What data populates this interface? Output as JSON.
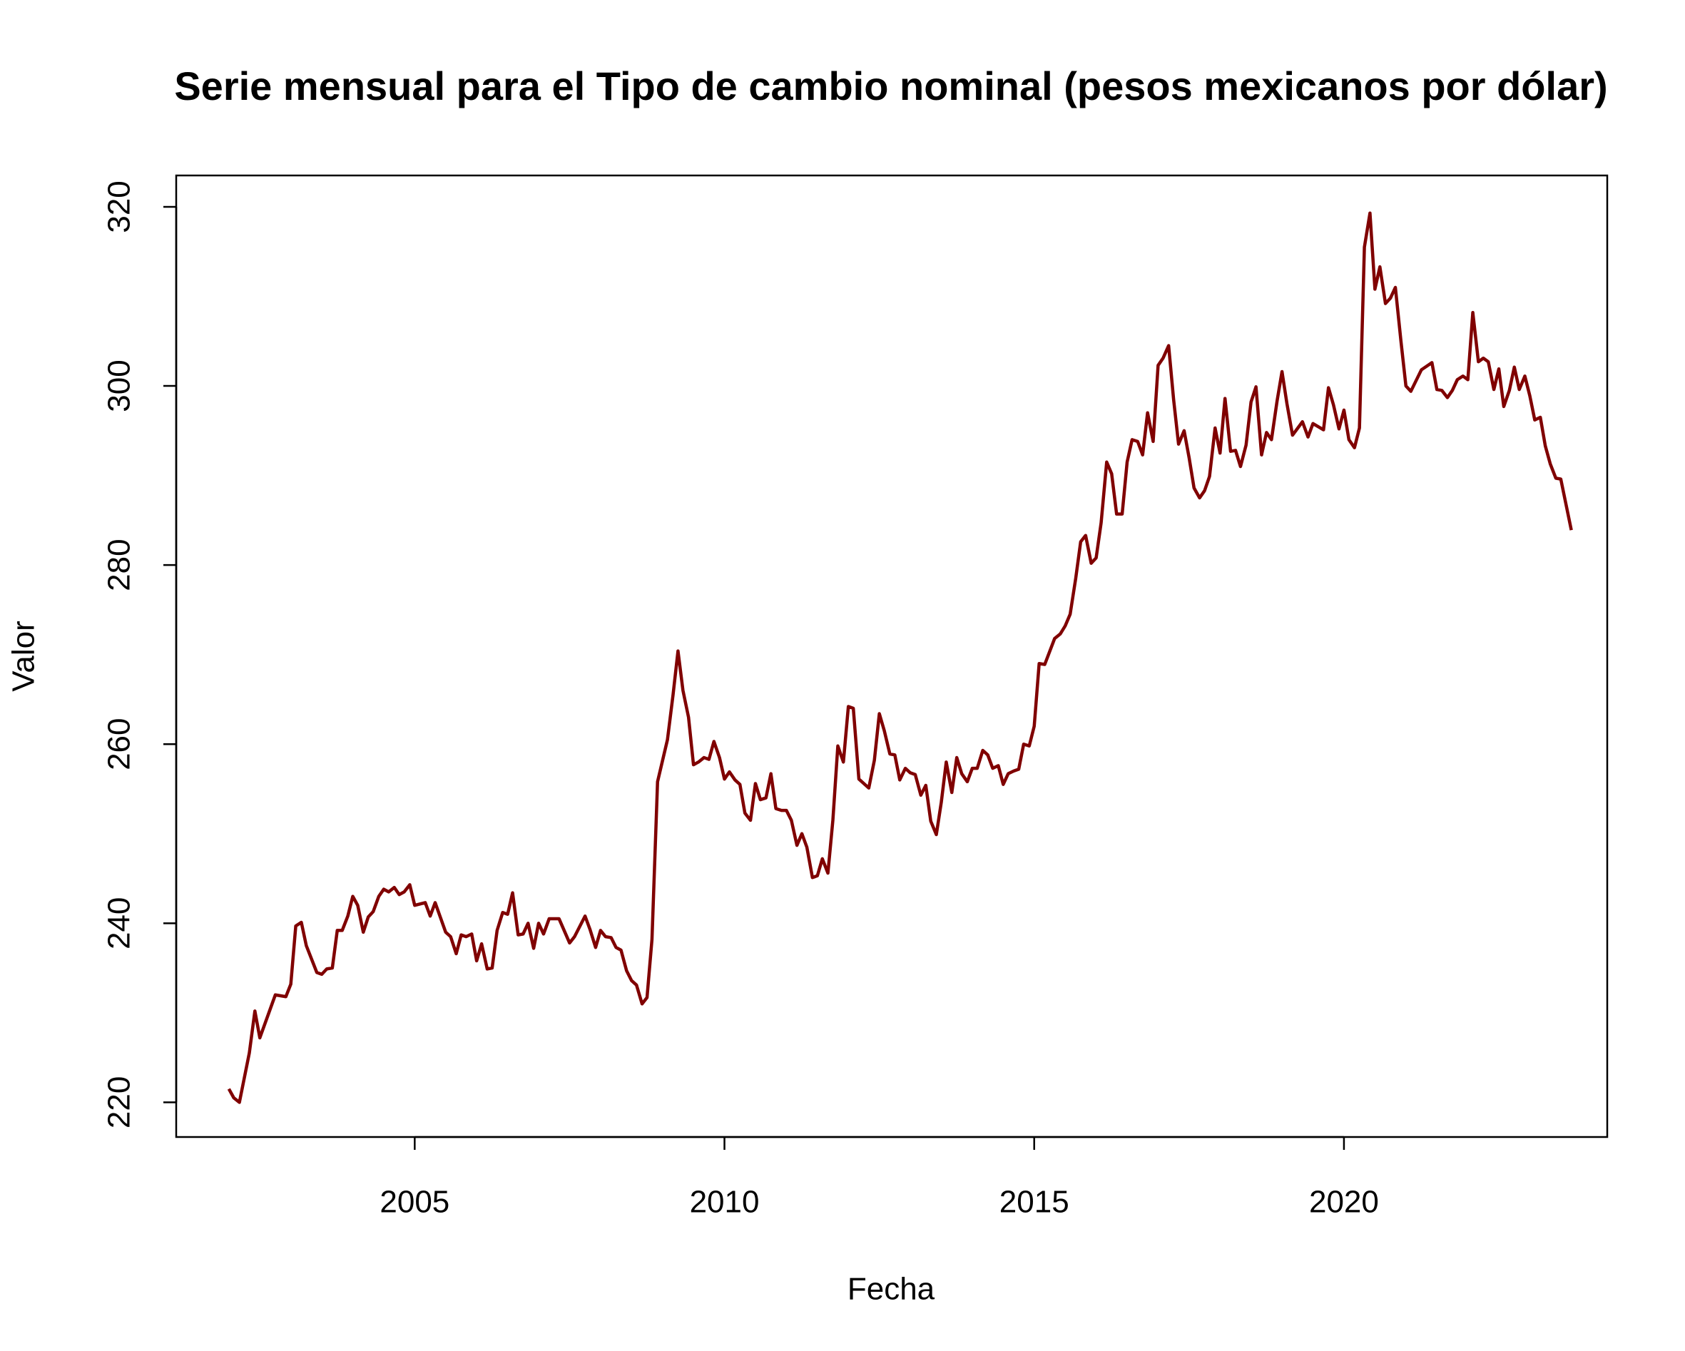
{
  "chart_data": {
    "type": "line",
    "title": "Serie mensual para el Tipo de cambio nominal (pesos mexicanos por dólar)",
    "x_label": "Fecha",
    "y_label": "Valor",
    "color": "#800000",
    "xlim": [
      2001.15,
      2024.25
    ],
    "ylim": [
      216.13,
      323.5
    ],
    "xticks": [
      2005,
      2010,
      2015,
      2020
    ],
    "yticks": [
      220,
      240,
      260,
      280,
      300,
      320
    ],
    "grid": false,
    "x": [
      2002.0,
      2002.08,
      2002.17,
      2002.33,
      2002.42,
      2002.5,
      2002.75,
      2002.92,
      2003.0,
      2003.08,
      2003.17,
      2003.25,
      2003.42,
      2003.5,
      2003.58,
      2003.67,
      2003.75,
      2003.83,
      2003.92,
      2004.0,
      2004.08,
      2004.17,
      2004.25,
      2004.33,
      2004.42,
      2004.5,
      2004.58,
      2004.67,
      2004.75,
      2004.83,
      2004.92,
      2005.0,
      2005.17,
      2005.25,
      2005.33,
      2005.5,
      2005.58,
      2005.67,
      2005.75,
      2005.83,
      2005.92,
      2006.0,
      2006.08,
      2006.17,
      2006.25,
      2006.33,
      2006.42,
      2006.5,
      2006.58,
      2006.67,
      2006.75,
      2006.83,
      2006.92,
      2007.0,
      2007.08,
      2007.17,
      2007.33,
      2007.5,
      2007.58,
      2007.75,
      2007.83,
      2007.92,
      2008.0,
      2008.08,
      2008.17,
      2008.25,
      2008.33,
      2008.42,
      2008.5,
      2008.58,
      2008.67,
      2008.75,
      2008.83,
      2008.92,
      2009.08,
      2009.17,
      2009.25,
      2009.33,
      2009.42,
      2009.5,
      2009.58,
      2009.67,
      2009.75,
      2009.83,
      2009.92,
      2010.0,
      2010.08,
      2010.17,
      2010.25,
      2010.33,
      2010.42,
      2010.5,
      2010.58,
      2010.67,
      2010.75,
      2010.83,
      2010.92,
      2011.0,
      2011.08,
      2011.17,
      2011.25,
      2011.33,
      2011.42,
      2011.5,
      2011.58,
      2011.67,
      2011.75,
      2011.83,
      2011.92,
      2012.0,
      2012.08,
      2012.17,
      2012.33,
      2012.42,
      2012.5,
      2012.58,
      2012.67,
      2012.75,
      2012.83,
      2012.92,
      2013.0,
      2013.08,
      2013.17,
      2013.25,
      2013.33,
      2013.42,
      2013.5,
      2013.58,
      2013.67,
      2013.75,
      2013.83,
      2013.92,
      2014.0,
      2014.08,
      2014.17,
      2014.25,
      2014.33,
      2014.42,
      2014.5,
      2014.58,
      2014.67,
      2014.75,
      2014.83,
      2014.92,
      2015.0,
      2015.08,
      2015.17,
      2015.33,
      2015.42,
      2015.5,
      2015.58,
      2015.67,
      2015.75,
      2015.83,
      2015.92,
      2016.0,
      2016.08,
      2016.17,
      2016.25,
      2016.33,
      2016.42,
      2016.5,
      2016.58,
      2016.67,
      2016.75,
      2016.83,
      2016.92,
      2017.0,
      2017.08,
      2017.17,
      2017.25,
      2017.33,
      2017.42,
      2017.5,
      2017.58,
      2017.67,
      2017.75,
      2017.83,
      2017.92,
      2018.0,
      2018.08,
      2018.17,
      2018.25,
      2018.33,
      2018.42,
      2018.5,
      2018.58,
      2018.67,
      2018.75,
      2018.83,
      2018.92,
      2019.0,
      2019.08,
      2019.17,
      2019.33,
      2019.42,
      2019.5,
      2019.67,
      2019.75,
      2019.83,
      2019.92,
      2020.0,
      2020.08,
      2020.17,
      2020.25,
      2020.33,
      2020.42,
      2020.5,
      2020.58,
      2020.67,
      2020.75,
      2020.83,
      2020.92,
      2021.0,
      2021.08,
      2021.25,
      2021.42,
      2021.5,
      2021.58,
      2021.67,
      2021.75,
      2021.83,
      2021.92,
      2022.0,
      2022.08,
      2022.17,
      2022.25,
      2022.33,
      2022.42,
      2022.5,
      2022.58,
      2022.67,
      2022.75,
      2022.83,
      2022.92,
      2023.0,
      2023.08,
      2023.17,
      2023.25,
      2023.33,
      2023.42,
      2023.5,
      2023.67
    ],
    "values": [
      221.5,
      220.5,
      220.0,
      225.5,
      230.2,
      227.2,
      232,
      231.8,
      233.2,
      239.7,
      240.1,
      237.5,
      234.5,
      234.3,
      234.9,
      235,
      239.2,
      239.2,
      240.8,
      243,
      242,
      239,
      240.7,
      241.3,
      243,
      243.8,
      243.5,
      244,
      243.2,
      243.5,
      244.3,
      242,
      242.3,
      240.8,
      242.3,
      239,
      238.5,
      236.6,
      238.7,
      238.5,
      238.8,
      235.8,
      237.7,
      234.9,
      235,
      239.2,
      241.2,
      241,
      243.4,
      238.7,
      238.8,
      240,
      237.2,
      240,
      238.8,
      240.5,
      240.5,
      237.8,
      238.5,
      240.8,
      239.3,
      237.3,
      239.2,
      238.5,
      238.4,
      237.3,
      237,
      234.7,
      233.6,
      233.1,
      231,
      231.7,
      238.2,
      255.8,
      260.5,
      265.5,
      270.4,
      266,
      263,
      257.7,
      258,
      258.5,
      258.3,
      260.3,
      258.5,
      256.1,
      256.9,
      256,
      255.5,
      252.3,
      251.5,
      255.6,
      253.8,
      254,
      256.7,
      252.8,
      252.6,
      252.6,
      251.5,
      248.7,
      250,
      248.5,
      245.1,
      245.3,
      247.2,
      245.6,
      251.5,
      259.8,
      258,
      264.2,
      264,
      256.1,
      255.1,
      258.2,
      263.4,
      261.5,
      258.9,
      258.8,
      256,
      257.3,
      256.8,
      256.6,
      254.3,
      255.4,
      251.4,
      249.9,
      253.5,
      258,
      254.6,
      258.5,
      256.7,
      255.8,
      257.3,
      257.3,
      259.3,
      258.8,
      257.3,
      257.6,
      255.5,
      256.7,
      257,
      257.2,
      260,
      259.8,
      262,
      269,
      268.9,
      271.8,
      272.3,
      273.2,
      274.5,
      278.5,
      282.6,
      283.3,
      280.2,
      280.8,
      284.7,
      291.5,
      290.2,
      285.7,
      285.7,
      291.5,
      294,
      293.8,
      292.3,
      297,
      293.8,
      302.3,
      303.1,
      304.5,
      298.5,
      293.5,
      295,
      292,
      288.6,
      287.5,
      288.3,
      289.9,
      295.3,
      292.5,
      298.6,
      292.7,
      292.8,
      291,
      293.4,
      298.2,
      299.9,
      292.3,
      294.8,
      294,
      298.3,
      301.6,
      298,
      294.5,
      296,
      294.3,
      295.8,
      295.1,
      299.8,
      297.9,
      295.2,
      297.3,
      294,
      293.1,
      295.3,
      315.5,
      319.3,
      310.8,
      313.3,
      309.2,
      309.8,
      311,
      305,
      300,
      299.4,
      301.8,
      302.6,
      299.6,
      299.5,
      298.7,
      299.5,
      300.7,
      301.1,
      300.7,
      308.2,
      302.7,
      303.1,
      302.7,
      299.6,
      301.9,
      297.7,
      299.5,
      302.1,
      299.6,
      301.1,
      298.9,
      296.2,
      296.5,
      293.3,
      291.3,
      289.7,
      289.6,
      283.9
    ]
  }
}
